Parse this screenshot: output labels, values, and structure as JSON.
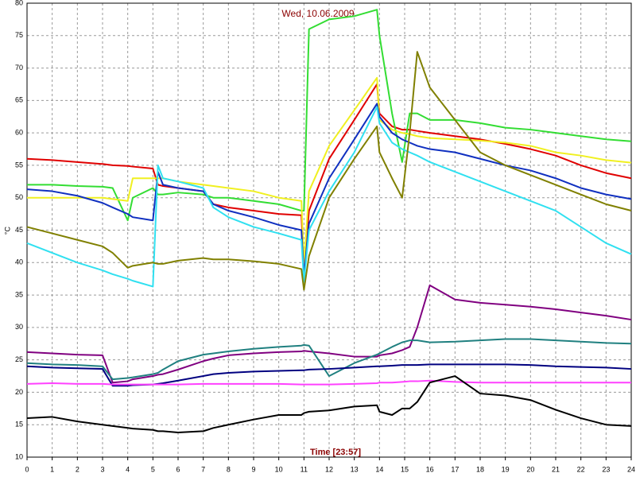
{
  "chart_data": {
    "type": "line",
    "title": "Wed, 10.06.2009",
    "x_label": "Time [23:57]",
    "y_label": "°C",
    "x": [
      0,
      1,
      2,
      3,
      3.4,
      4,
      4.2,
      5,
      5.2,
      5.4,
      6,
      7,
      7.4,
      8,
      9,
      10,
      10.9,
      11,
      11.2,
      12,
      13,
      13.9,
      14,
      14.5,
      14.9,
      15.2,
      15.5,
      16,
      17,
      18,
      19,
      20,
      21,
      22,
      23,
      24
    ],
    "series": [
      {
        "color": "#e00000",
        "values": [
          56,
          55.8,
          55.5,
          55.2,
          55,
          54.9,
          54.8,
          54.5,
          52,
          51.8,
          51.5,
          51,
          49,
          48.5,
          48,
          47.5,
          47.3,
          38.5,
          48,
          56,
          62,
          67.5,
          63,
          61,
          60.5,
          60.5,
          60.3,
          60,
          59.5,
          59,
          58.3,
          57.5,
          56.5,
          55,
          53.8,
          53
        ]
      },
      {
        "color": "#33dd33",
        "values": [
          52,
          52,
          51.8,
          51.7,
          51.5,
          46.5,
          50,
          51.5,
          50.5,
          50.5,
          50.8,
          50.5,
          50,
          50,
          49.5,
          49,
          48,
          48,
          76,
          77.5,
          78,
          79,
          75,
          63,
          55.5,
          63,
          63,
          62,
          62,
          61.5,
          60.8,
          60.5,
          60,
          59.5,
          59,
          58.7
        ]
      },
      {
        "color": "#f0f020",
        "values": [
          50,
          50,
          50,
          50,
          49.8,
          49.5,
          53,
          53,
          53,
          53,
          52.5,
          52,
          51.8,
          51.5,
          51,
          50,
          49.5,
          39.5,
          51,
          58,
          63.5,
          68.5,
          62,
          60.5,
          60,
          59.8,
          59.5,
          59.2,
          59,
          58.8,
          58.5,
          58,
          57,
          56.5,
          55.8,
          55.4
        ]
      },
      {
        "color": "#1030c0",
        "values": [
          51.3,
          51,
          50.3,
          49.2,
          48.5,
          47.5,
          47,
          46.5,
          54,
          52,
          51.5,
          51,
          49,
          48,
          47,
          45.8,
          45,
          38,
          46,
          53,
          59,
          64.5,
          62.5,
          60,
          59,
          58.5,
          58,
          57.5,
          57,
          56,
          55,
          54.2,
          53,
          51.5,
          50.5,
          49.8
        ]
      },
      {
        "color": "#30e0f0",
        "values": [
          43,
          41.5,
          40,
          38.8,
          38.2,
          37.5,
          37.2,
          36.3,
          55,
          53,
          52.5,
          51.5,
          48.5,
          47,
          45.5,
          44.5,
          43.5,
          37,
          45,
          51,
          57,
          64,
          61.5,
          58.5,
          57.5,
          57,
          56.5,
          55.5,
          54,
          52.5,
          51,
          49.5,
          48,
          45.5,
          43,
          41.3
        ]
      },
      {
        "color": "#808000",
        "values": [
          45.5,
          44.5,
          43.5,
          42.5,
          41.5,
          39.2,
          39.5,
          40,
          39.8,
          39.8,
          40.3,
          40.7,
          40.5,
          40.5,
          40.2,
          39.8,
          39,
          35.8,
          41,
          50,
          56,
          61,
          57,
          53,
          50,
          60,
          72.5,
          67,
          62,
          57,
          55,
          53.5,
          52,
          50.5,
          49,
          48
        ]
      },
      {
        "color": "#800080",
        "values": [
          26.2,
          26,
          25.8,
          25.7,
          21.5,
          21.7,
          22,
          22.5,
          22.7,
          22.8,
          23.5,
          24.8,
          25.2,
          25.7,
          26,
          26.2,
          26.3,
          26.4,
          26.3,
          26,
          25.5,
          25.5,
          25.7,
          26,
          26.5,
          27,
          30,
          36.5,
          34.3,
          33.8,
          33.5,
          33.2,
          32.8,
          32.3,
          31.8,
          31.2
        ]
      },
      {
        "color": "#208080",
        "values": [
          24.5,
          24.3,
          24.2,
          24,
          22,
          22.2,
          22.3,
          22.8,
          23,
          23.5,
          24.8,
          25.8,
          26,
          26.3,
          26.7,
          27,
          27.2,
          27.3,
          27.2,
          22.5,
          24.5,
          25.8,
          26,
          27,
          27.7,
          28,
          28,
          27.7,
          27.8,
          28,
          28.2,
          28.2,
          28,
          27.8,
          27.6,
          27.5
        ]
      },
      {
        "color": "#000080",
        "values": [
          24,
          23.8,
          23.7,
          23.6,
          21,
          21,
          21.1,
          21.2,
          21.3,
          21.4,
          21.8,
          22.5,
          22.8,
          23,
          23.2,
          23.3,
          23.4,
          23.4,
          23.5,
          23.6,
          23.8,
          24,
          24,
          24.1,
          24.2,
          24.2,
          24.2,
          24.3,
          24.3,
          24.3,
          24.3,
          24.2,
          24,
          23.9,
          23.8,
          23.6
        ]
      },
      {
        "color": "#ff40ff",
        "values": [
          21.3,
          21.4,
          21.3,
          21.3,
          21.2,
          21.2,
          21.2,
          21.2,
          21.2,
          21.2,
          21.2,
          21.3,
          21.3,
          21.3,
          21.3,
          21.3,
          21.2,
          21.2,
          21.2,
          21.2,
          21.3,
          21.4,
          21.5,
          21.5,
          21.6,
          21.7,
          21.7,
          21.8,
          21.6,
          21.5,
          21.5,
          21.5,
          21.5,
          21.5,
          21.5,
          21.5
        ]
      },
      {
        "color": "#000000",
        "values": [
          16,
          16.2,
          15.5,
          15,
          14.8,
          14.5,
          14.4,
          14.2,
          14,
          14,
          13.8,
          14,
          14.5,
          15,
          15.8,
          16.5,
          16.5,
          16.8,
          17,
          17.2,
          17.8,
          18,
          17,
          16.5,
          17.5,
          17.5,
          18.5,
          21.5,
          22.5,
          19.8,
          19.5,
          18.8,
          17.3,
          16,
          15,
          14.8
        ]
      }
    ],
    "xlim": [
      0,
      24
    ],
    "ylim": [
      10,
      80
    ],
    "xticks": [
      0,
      1,
      2,
      3,
      4,
      5,
      6,
      7,
      8,
      9,
      10,
      11,
      12,
      13,
      14,
      15,
      16,
      17,
      18,
      19,
      20,
      21,
      22,
      23,
      24
    ],
    "yticks": [
      10,
      15,
      20,
      25,
      30,
      35,
      40,
      45,
      50,
      55,
      60,
      65,
      70,
      75,
      80
    ],
    "grid": true
  }
}
